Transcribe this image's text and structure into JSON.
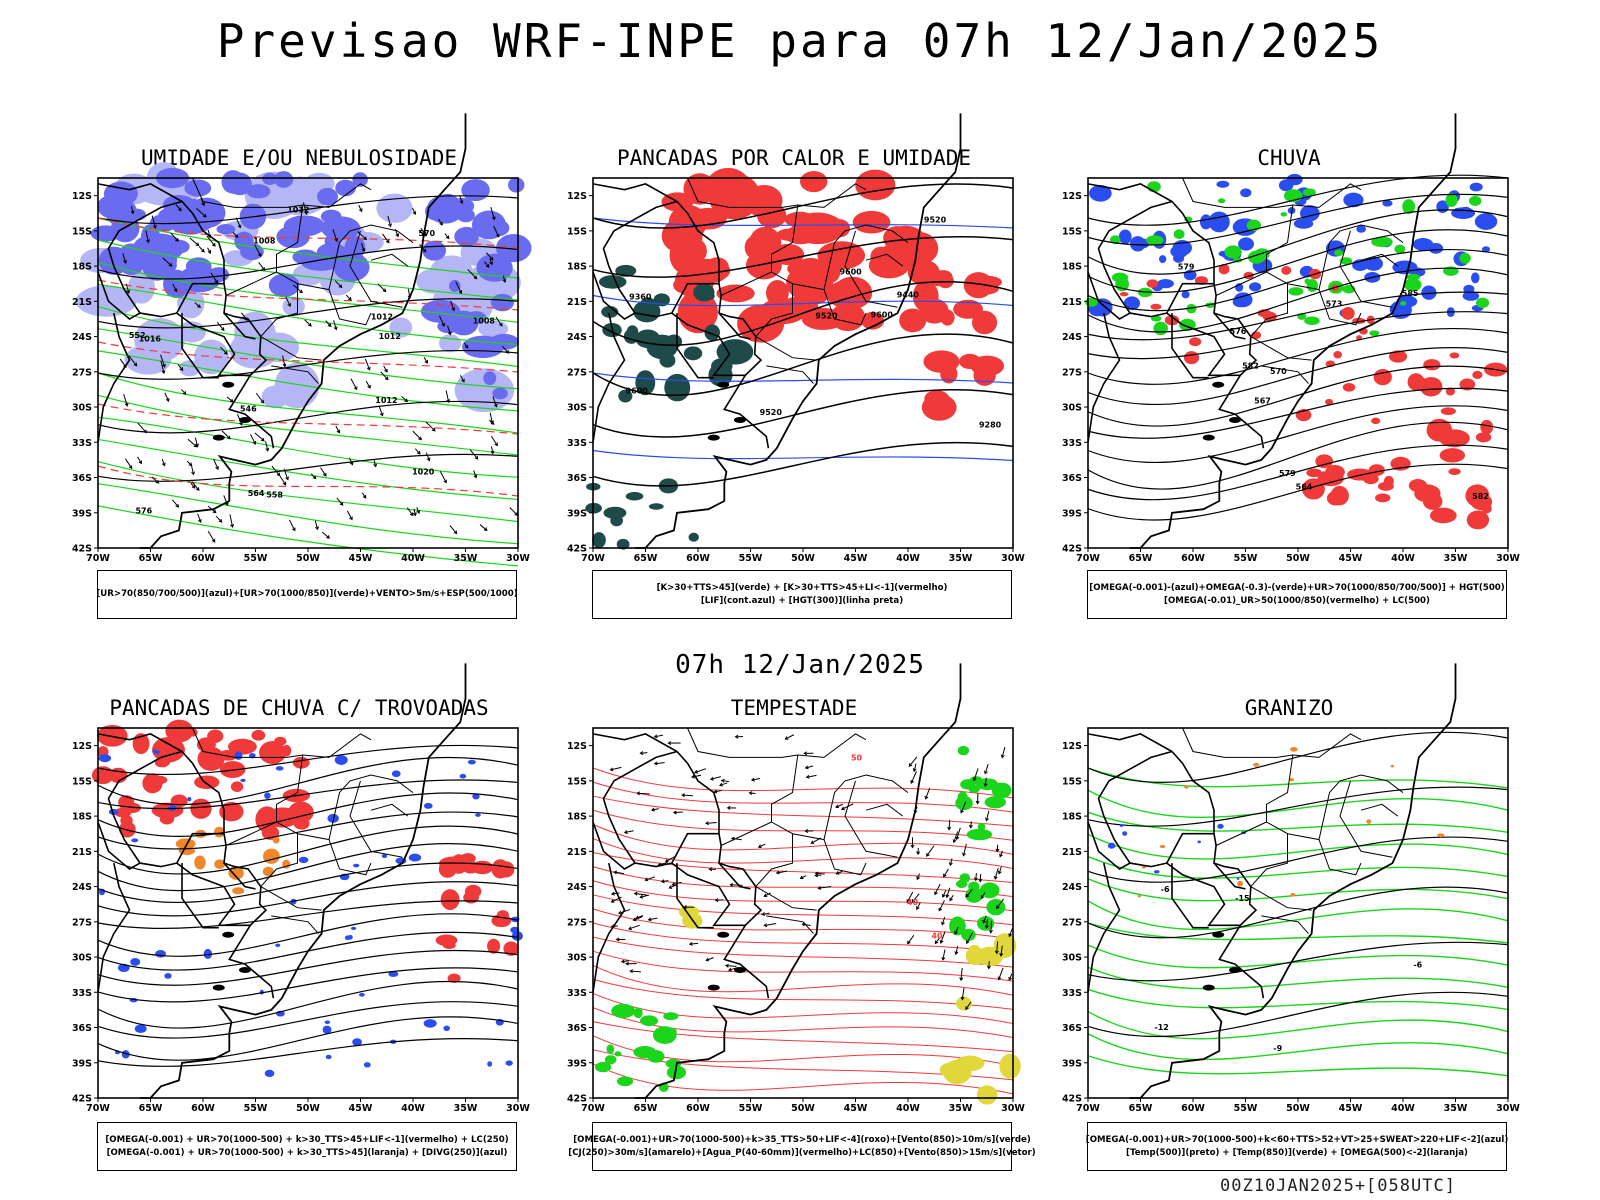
{
  "title": "Previsao WRF-INPE  para 07h 12/Jan/2025",
  "mid_time": "07h 12/Jan/2025",
  "footer": "00Z10JAN2025+[058UTC]",
  "axes": {
    "lat_labels": [
      "12S",
      "15S",
      "18S",
      "21S",
      "24S",
      "27S",
      "30S",
      "33S",
      "36S",
      "39S",
      "42S"
    ],
    "lon_labels": [
      "70W",
      "65W",
      "60W",
      "55W",
      "50W",
      "45W",
      "40W",
      "35W",
      "30W"
    ]
  },
  "panels": [
    {
      "id": "umidade",
      "title": "UMIDADE E/OU NEBULOSIDADE",
      "legend": [
        "[UR>70(850/700/500)](azul)+[UR>70(1000/850)](verde)+VENTO>5m/s+ESP(500/1000)"
      ],
      "contour_labels": [
        "1012",
        "1012",
        "1008",
        "1012",
        "1008",
        "1012",
        "1016",
        "1020",
        "570",
        "576",
        "564",
        "558",
        "552",
        "546"
      ]
    },
    {
      "id": "pancadas",
      "title": "PANCADAS POR CALOR E UMIDADE",
      "legend": [
        "[K>30+TTS>45](verde) + [K>30+TTS>45+LI<-1](vermelho)",
        "[LIF](cont.azul) + [HGT(300)](linha preta)"
      ],
      "contour_labels": [
        "9600",
        "9600",
        "9520",
        "9520",
        "9440",
        "9360",
        "9280",
        "9600",
        "9520"
      ]
    },
    {
      "id": "chuva",
      "title": "CHUVA",
      "legend": [
        "[OMEGA(-0.001)-(azul)+OMEGA(-0.3)-(verde)+UR>70(1000/850/700/500)] + HGT(500)",
        "[OMEGA(-0.01)_UR>50(1000/850)(vermelho) + LC(500)"
      ],
      "contour_labels": [
        "582",
        "585",
        "582",
        "579",
        "576",
        "573",
        "570",
        "567",
        "564",
        "579"
      ]
    },
    {
      "id": "trovoadas",
      "title": "PANCADAS DE CHUVA C/ TROVOADAS",
      "legend": [
        "[OMEGA(-0.001) + UR>70(1000-500) + k>30_TTS>45+LIF<-1](vermelho) + LC(250)",
        "[OMEGA(-0.001) + UR>70(1000-500) + k>30_TTS>45](laranja) + [DIVG(250)](azul)"
      ],
      "contour_labels": []
    },
    {
      "id": "tempestade",
      "title": "TEMPESTADE",
      "legend": [
        "[OMEGA(-0.001)+UR>70(1000-500)+k>35_TTS>50+LIF<-4](roxo)+[Vento(850)>10m/s](verde)",
        "[CJ(250)>30m/s](amarelo)+[Agua_P(40-60mm)](vermelho)+LC(850)+[Vento(850)>15m/s](vetor)"
      ],
      "contour_labels": [
        "50",
        "40",
        "40"
      ]
    },
    {
      "id": "granizo",
      "title": "GRANIZO",
      "legend": [
        "[OMEGA(-0.001)+UR>70(1000-500)+k<60+TTS>52+VT>25+SWEAT>220+LIF<-2](azul)",
        "[Temp(500)](preto) + [Temp(850)](verde) + [OMEGA(500)<-2](laranja)"
      ],
      "contour_labels": [
        "-6",
        "-9",
        "-12",
        "-15",
        "-6"
      ]
    }
  ],
  "colors": {
    "blue_humidity": "#6a6cf0",
    "light_blue": "#b4b6f5",
    "green": "#1bd51b",
    "red": "#f03a3a",
    "dark_teal": "#1e4a4a",
    "orange": "#f0862a",
    "yellow": "#e0d83a",
    "blue": "#2a4df0"
  }
}
